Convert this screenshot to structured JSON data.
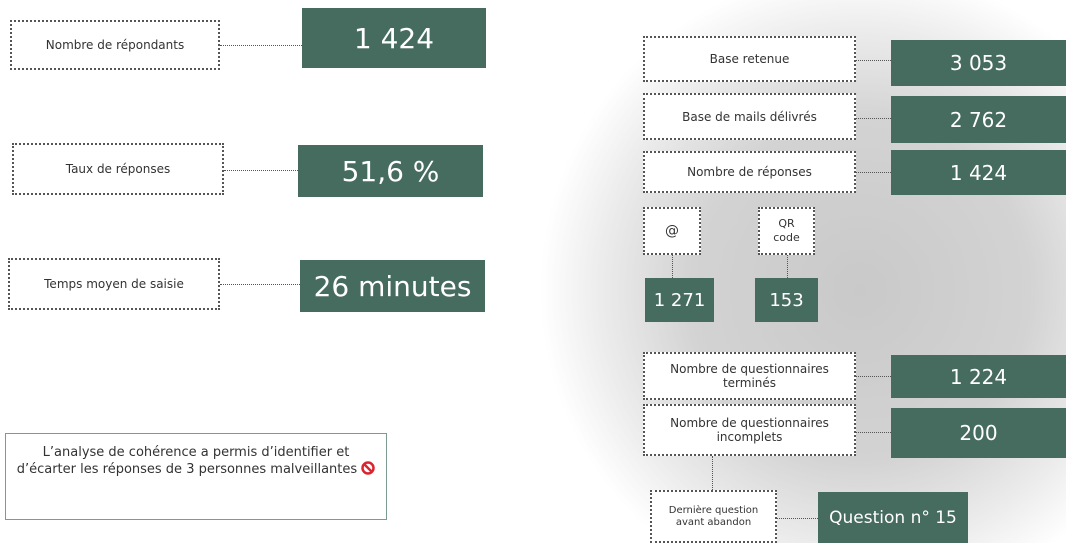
{
  "left": {
    "metrics": [
      {
        "label": "Nombre de répondants",
        "value": "1 424"
      },
      {
        "label": "Taux de réponses",
        "value": "51,6 %"
      },
      {
        "label": "Temps moyen de saisie",
        "value": "26 minutes"
      }
    ],
    "note": "L’analyse de cohérence a permis d’identifier et d’écarter les réponses de 3 personnes malveillantes"
  },
  "right": {
    "metrics": [
      {
        "label": "Base retenue",
        "value": "3 053"
      },
      {
        "label": "Base de mails délivrés",
        "value": "2 762"
      },
      {
        "label": "Nombre de réponses",
        "value": "1 424"
      }
    ],
    "channels": [
      {
        "label": "@",
        "value": "1 271"
      },
      {
        "label": "QR code",
        "value": "153"
      }
    ],
    "completion": [
      {
        "label": "Nombre de questionnaires terminés",
        "value": "1 224"
      },
      {
        "label": "Nombre de questionnaires incomplets",
        "value": "200"
      }
    ],
    "abandon": {
      "label": "Dernière question avant abandon",
      "value": "Question n° 15"
    }
  }
}
